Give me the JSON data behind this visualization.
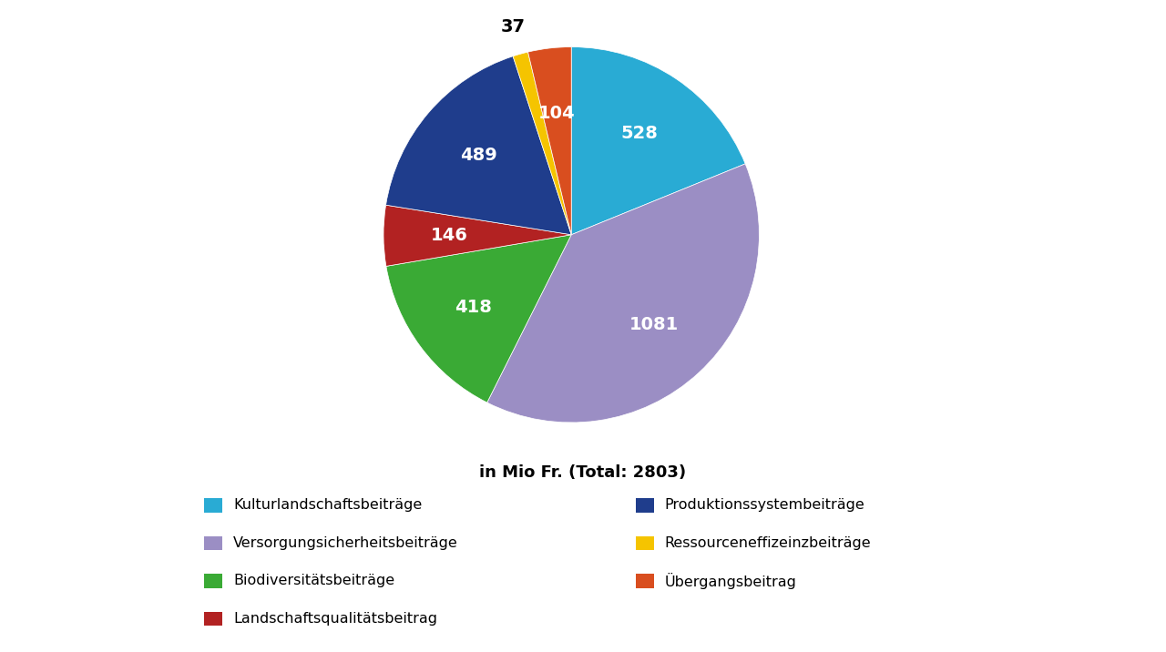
{
  "values": [
    528,
    1081,
    418,
    146,
    489,
    37,
    104
  ],
  "labels": [
    "528",
    "1081",
    "418",
    "146",
    "489",
    "37",
    "104"
  ],
  "label_colors": [
    "white",
    "white",
    "white",
    "white",
    "white",
    "black",
    "white"
  ],
  "label_outside": [
    false,
    false,
    false,
    false,
    false,
    true,
    false
  ],
  "colors": [
    "#29ABD4",
    "#9B8EC4",
    "#3AAA35",
    "#B22222",
    "#1F3D8C",
    "#F5C400",
    "#D94E1F"
  ],
  "legend_entries": [
    {
      "label": "Kulturlandschaftsbeiträge",
      "color": "#29ABD4",
      "col": 0
    },
    {
      "label": "Produktionssystembeiträge",
      "color": "#1F3D8C",
      "col": 1
    },
    {
      "label": "Versorgungsicherheitsbeiträge",
      "color": "#9B8EC4",
      "col": 0
    },
    {
      "label": "Ressourceneffizeinzbeiträge",
      "color": "#F5C400",
      "col": 1
    },
    {
      "label": "Biodiversitätsbeiträge",
      "color": "#3AAA35",
      "col": 0
    },
    {
      "label": "Übergangsbeitrag",
      "color": "#D94E1F",
      "col": 1
    },
    {
      "label": "Landschaftsqualitätsbeitrag",
      "color": "#B22222",
      "col": 0
    }
  ],
  "subtitle": "in Mio Fr. (Total: 2803)",
  "background_color": "#FFFFFF",
  "label_fontsize": 14,
  "legend_fontsize": 11.5
}
